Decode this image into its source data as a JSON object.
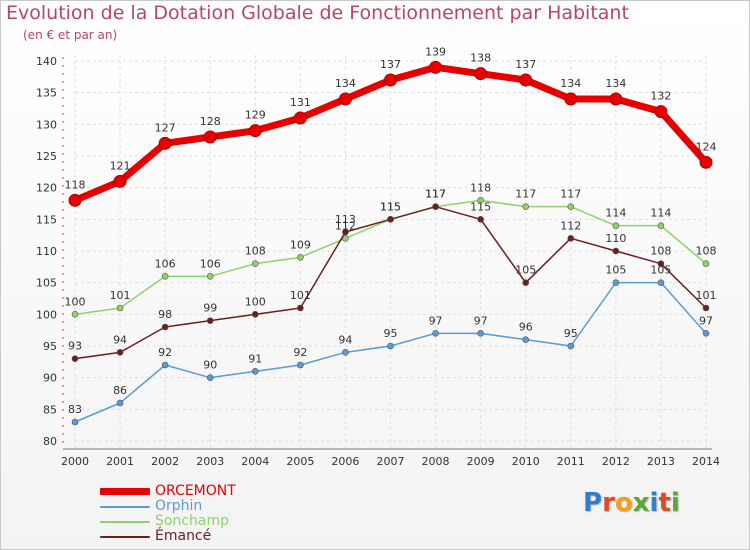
{
  "title": "Evolution de la Dotation Globale de Fonctionnement par Habitant",
  "subtitle": "(en € et par an)",
  "logo": {
    "letters": [
      "P",
      "r",
      "o",
      "x",
      "i",
      "t",
      "i"
    ],
    "colors": [
      "#2f7fd0",
      "#e0482a",
      "#f2a11f",
      "#5aa83a",
      "#2f7fd0",
      "#e0482a",
      "#5aa83a"
    ]
  },
  "chart_data": {
    "type": "line",
    "title": "Evolution de la Dotation Globale de Fonctionnement par Habitant",
    "subtitle": "(en € et par an)",
    "x": [
      2000,
      2001,
      2002,
      2003,
      2004,
      2005,
      2006,
      2007,
      2008,
      2009,
      2010,
      2011,
      2012,
      2013,
      2014
    ],
    "ylim": [
      80,
      140
    ],
    "yticks": [
      80,
      85,
      90,
      95,
      100,
      105,
      110,
      115,
      120,
      125,
      130,
      135,
      140
    ],
    "grid": true,
    "legend_position": "bottom-left",
    "series": [
      {
        "name": "ORCEMONT",
        "color": "#e60000",
        "values": [
          118,
          121,
          127,
          128,
          129,
          131,
          134,
          137,
          139,
          138,
          137,
          134,
          134,
          132,
          124
        ]
      },
      {
        "name": "Orphin",
        "color": "#5b9bd5",
        "values": [
          83,
          86,
          92,
          90,
          91,
          92,
          94,
          95,
          97,
          97,
          96,
          95,
          105,
          105,
          97
        ]
      },
      {
        "name": "Sonchamp",
        "color": "#8fd16a",
        "values": [
          100,
          101,
          106,
          106,
          108,
          109,
          112,
          115,
          117,
          118,
          117,
          117,
          114,
          114,
          108
        ]
      },
      {
        "name": "Émancé",
        "color": "#6b1e1e",
        "values": [
          93,
          94,
          98,
          99,
          100,
          101,
          113,
          115,
          117,
          115,
          105,
          112,
          110,
          108,
          101
        ]
      }
    ]
  }
}
